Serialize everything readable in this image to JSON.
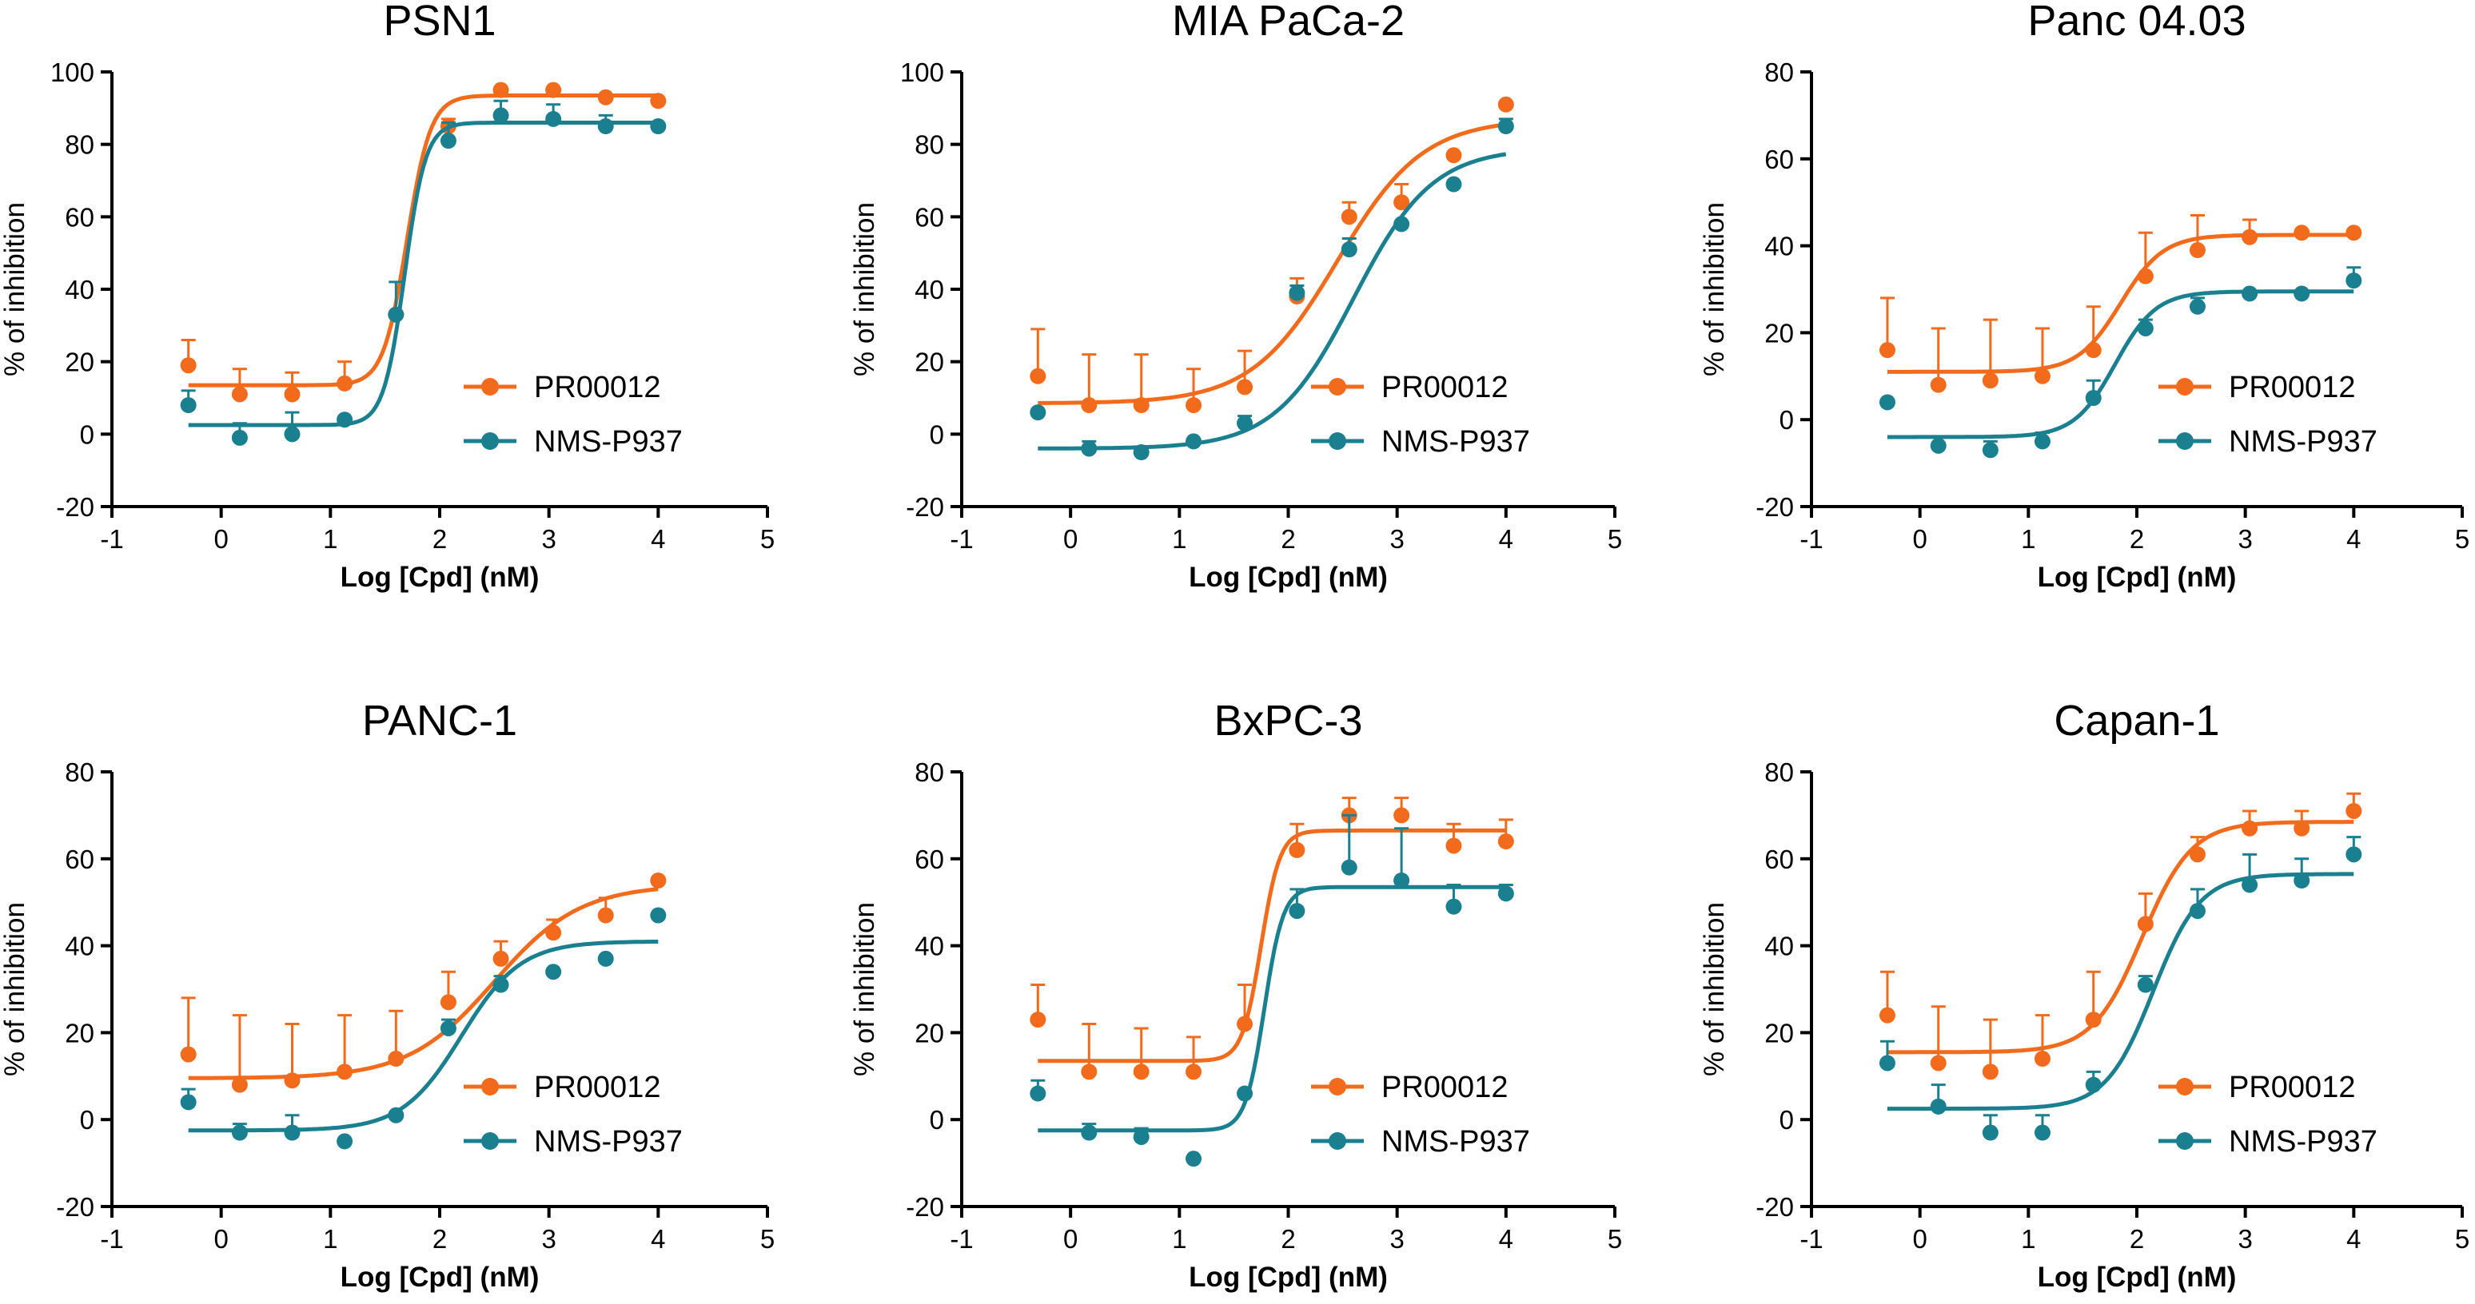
{
  "figure": {
    "colors": {
      "PR00012": "#f26b1d",
      "NMS-P937": "#1a7f8f",
      "axis": "#000000"
    }
  },
  "chart_data": [
    {
      "type": "scatter",
      "title": "PSN1",
      "xlabel": "Log [Cpd] (nM)",
      "ylabel": "% of inhibition",
      "xlim": [
        -1,
        5
      ],
      "ylim": [
        -20,
        100
      ],
      "xticks": [
        -1,
        0,
        1,
        2,
        3,
        4,
        5
      ],
      "yticks": [
        -20,
        0,
        20,
        40,
        60,
        80,
        100
      ],
      "legend_position": "lower-right",
      "series": [
        {
          "name": "PR00012",
          "color": "#f26b1d",
          "x": [
            -0.3,
            0.17,
            0.65,
            1.13,
            1.6,
            2.08,
            2.56,
            3.04,
            3.52,
            4.0
          ],
          "y": [
            19,
            11,
            11,
            14,
            33,
            85,
            95,
            95,
            93,
            92
          ],
          "err": [
            7,
            7,
            6,
            6,
            0,
            2,
            0,
            0,
            0,
            0
          ],
          "fit": {
            "bottom": 13.5,
            "top": 93.5,
            "logec50": 1.7,
            "hill": 4.0
          }
        },
        {
          "name": "NMS-P937",
          "color": "#1a7f8f",
          "x": [
            -0.3,
            0.17,
            0.65,
            1.13,
            1.6,
            2.08,
            2.56,
            3.04,
            3.52,
            4.0
          ],
          "y": [
            8,
            -1,
            0,
            4,
            33,
            81,
            88,
            87,
            85,
            85
          ],
          "err": [
            4,
            4,
            6,
            0,
            9,
            5,
            4,
            4,
            3,
            0
          ],
          "fit": {
            "bottom": 2.5,
            "top": 86,
            "logec50": 1.68,
            "hill": 4.5
          }
        }
      ]
    },
    {
      "type": "scatter",
      "title": "MIA PaCa-2",
      "xlabel": "Log [Cpd] (nM)",
      "ylabel": "% of inhibition",
      "xlim": [
        -1,
        5
      ],
      "ylim": [
        -20,
        100
      ],
      "xticks": [
        -1,
        0,
        1,
        2,
        3,
        4,
        5
      ],
      "yticks": [
        -20,
        0,
        20,
        40,
        60,
        80,
        100
      ],
      "legend_position": "lower-right",
      "series": [
        {
          "name": "PR00012",
          "color": "#f26b1d",
          "x": [
            -0.3,
            0.17,
            0.65,
            1.13,
            1.6,
            2.08,
            2.56,
            3.04,
            3.52,
            4.0
          ],
          "y": [
            16,
            8,
            8,
            8,
            13,
            38,
            60,
            64,
            77,
            91
          ],
          "err": [
            13,
            14,
            14,
            10,
            10,
            5,
            4,
            5,
            0,
            0
          ],
          "fit": {
            "bottom": 8.5,
            "top": 87,
            "logec50": 2.45,
            "hill": 1.1
          }
        },
        {
          "name": "NMS-P937",
          "color": "#1a7f8f",
          "x": [
            -0.3,
            0.17,
            0.65,
            1.13,
            1.6,
            2.08,
            2.56,
            3.04,
            3.52,
            4.0
          ],
          "y": [
            6,
            -4,
            -5,
            -2,
            3,
            39,
            51,
            58,
            69,
            85
          ],
          "err": [
            0,
            2,
            0,
            0,
            2,
            2,
            3,
            0,
            0,
            2
          ],
          "fit": {
            "bottom": -4,
            "top": 79,
            "logec50": 2.6,
            "hill": 1.2
          }
        }
      ]
    },
    {
      "type": "scatter",
      "title": "Panc 04.03",
      "xlabel": "Log [Cpd] (nM)",
      "ylabel": "% of inhibition",
      "xlim": [
        -1,
        5
      ],
      "ylim": [
        -20,
        80
      ],
      "xticks": [
        -1,
        0,
        1,
        2,
        3,
        4,
        5
      ],
      "yticks": [
        -20,
        0,
        20,
        40,
        60,
        80
      ],
      "legend_position": "lower-right",
      "series": [
        {
          "name": "PR00012",
          "color": "#f26b1d",
          "x": [
            -0.3,
            0.17,
            0.65,
            1.13,
            1.6,
            2.08,
            2.56,
            3.04,
            3.52,
            4.0
          ],
          "y": [
            16,
            8,
            9,
            10,
            16,
            33,
            39,
            42,
            43,
            43
          ],
          "err": [
            12,
            13,
            14,
            11,
            10,
            10,
            8,
            4,
            0,
            0
          ],
          "fit": {
            "bottom": 11,
            "top": 42.5,
            "logec50": 1.85,
            "hill": 2.2
          }
        },
        {
          "name": "NMS-P937",
          "color": "#1a7f8f",
          "x": [
            -0.3,
            0.17,
            0.65,
            1.13,
            1.6,
            2.08,
            2.56,
            3.04,
            3.52,
            4.0
          ],
          "y": [
            4,
            -6,
            -7,
            -5,
            5,
            21,
            26,
            29,
            29,
            32
          ],
          "err": [
            0,
            2,
            2,
            2,
            4,
            2,
            2,
            0,
            0,
            3
          ],
          "fit": {
            "bottom": -4,
            "top": 29.5,
            "logec50": 1.8,
            "hill": 2.3
          }
        }
      ]
    },
    {
      "type": "scatter",
      "title": "PANC-1",
      "xlabel": "Log [Cpd] (nM)",
      "ylabel": "% of inhibition",
      "xlim": [
        -1,
        5
      ],
      "ylim": [
        -20,
        80
      ],
      "xticks": [
        -1,
        0,
        1,
        2,
        3,
        4,
        5
      ],
      "yticks": [
        -20,
        0,
        20,
        40,
        60,
        80
      ],
      "legend_position": "lower-right",
      "series": [
        {
          "name": "PR00012",
          "color": "#f26b1d",
          "x": [
            -0.3,
            0.17,
            0.65,
            1.13,
            1.6,
            2.08,
            2.56,
            3.04,
            3.52,
            4.0
          ],
          "y": [
            15,
            8,
            9,
            11,
            14,
            27,
            37,
            43,
            47,
            55
          ],
          "err": [
            13,
            16,
            13,
            13,
            11,
            7,
            4,
            3,
            4,
            0
          ],
          "fit": {
            "bottom": 9.5,
            "top": 54,
            "logec50": 2.5,
            "hill": 1.1
          }
        },
        {
          "name": "NMS-P937",
          "color": "#1a7f8f",
          "x": [
            -0.3,
            0.17,
            0.65,
            1.13,
            1.6,
            2.08,
            2.56,
            3.04,
            3.52,
            4.0
          ],
          "y": [
            4,
            -3,
            -3,
            -5,
            1,
            21,
            31,
            34,
            37,
            47
          ],
          "err": [
            3,
            2,
            4,
            0,
            0,
            2,
            2,
            0,
            0,
            0
          ],
          "fit": {
            "bottom": -2.5,
            "top": 41,
            "logec50": 2.2,
            "hill": 1.6
          }
        }
      ]
    },
    {
      "type": "scatter",
      "title": "BxPC-3",
      "xlabel": "Log [Cpd] (nM)",
      "ylabel": "% of inhibition",
      "xlim": [
        -1,
        5
      ],
      "ylim": [
        -20,
        80
      ],
      "xticks": [
        -1,
        0,
        1,
        2,
        3,
        4,
        5
      ],
      "yticks": [
        -20,
        0,
        20,
        40,
        60,
        80
      ],
      "legend_position": "lower-right",
      "series": [
        {
          "name": "PR00012",
          "color": "#f26b1d",
          "x": [
            -0.3,
            0.17,
            0.65,
            1.13,
            1.6,
            2.08,
            2.56,
            3.04,
            3.52,
            4.0
          ],
          "y": [
            23,
            11,
            11,
            11,
            22,
            62,
            70,
            70,
            63,
            64
          ],
          "err": [
            8,
            11,
            10,
            8,
            9,
            6,
            4,
            4,
            5,
            5
          ],
          "fit": {
            "bottom": 13.5,
            "top": 66.5,
            "logec50": 1.75,
            "hill": 5.0
          }
        },
        {
          "name": "NMS-P937",
          "color": "#1a7f8f",
          "x": [
            -0.3,
            0.17,
            0.65,
            1.13,
            1.6,
            2.08,
            2.56,
            3.04,
            3.52,
            4.0
          ],
          "y": [
            6,
            -3,
            -4,
            -9,
            6,
            48,
            58,
            55,
            49,
            52
          ],
          "err": [
            3,
            2,
            2,
            0,
            0,
            5,
            12,
            12,
            5,
            2
          ],
          "fit": {
            "bottom": -2.5,
            "top": 53.5,
            "logec50": 1.78,
            "hill": 5.0
          }
        }
      ]
    },
    {
      "type": "scatter",
      "title": "Capan-1",
      "xlabel": "Log [Cpd] (nM)",
      "ylabel": "% of inhibition",
      "xlim": [
        -1,
        5
      ],
      "ylim": [
        -20,
        80
      ],
      "xticks": [
        -1,
        0,
        1,
        2,
        3,
        4,
        5
      ],
      "yticks": [
        -20,
        0,
        20,
        40,
        60,
        80
      ],
      "legend_position": "lower-right",
      "series": [
        {
          "name": "PR00012",
          "color": "#f26b1d",
          "x": [
            -0.3,
            0.17,
            0.65,
            1.13,
            1.6,
            2.08,
            2.56,
            3.04,
            3.52,
            4.0
          ],
          "y": [
            24,
            13,
            11,
            14,
            23,
            45,
            61,
            67,
            67,
            71
          ],
          "err": [
            10,
            13,
            12,
            10,
            11,
            7,
            4,
            4,
            4,
            4
          ],
          "fit": {
            "bottom": 15.5,
            "top": 68.5,
            "logec50": 2.05,
            "hill": 1.9
          }
        },
        {
          "name": "NMS-P937",
          "color": "#1a7f8f",
          "x": [
            -0.3,
            0.17,
            0.65,
            1.13,
            1.6,
            2.08,
            2.56,
            3.04,
            3.52,
            4.0
          ],
          "y": [
            13,
            3,
            -3,
            -3,
            8,
            31,
            48,
            54,
            55,
            61
          ],
          "err": [
            5,
            5,
            4,
            4,
            3,
            2,
            5,
            7,
            5,
            4
          ],
          "fit": {
            "bottom": 2.5,
            "top": 56.5,
            "logec50": 2.15,
            "hill": 2.0
          }
        }
      ]
    }
  ]
}
